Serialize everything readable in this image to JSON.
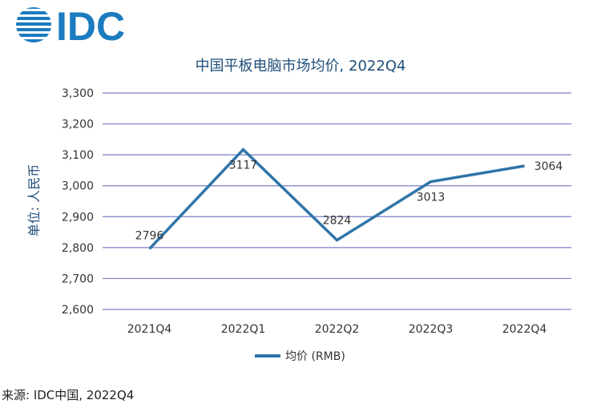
{
  "logo": {
    "text": "IDC",
    "color": "#1b7bbf"
  },
  "source_text": "来源: IDC中国, 2022Q4",
  "chart_data": {
    "type": "line",
    "title": "中国平板电脑市场均价, 2022Q4",
    "ylabel": "单位: 人民币",
    "xlabel": "",
    "categories": [
      "2021Q4",
      "2022Q1",
      "2022Q2",
      "2022Q3",
      "2022Q4"
    ],
    "series": [
      {
        "name": "均价 (RMB)",
        "values": [
          2796,
          3117,
          2824,
          3013,
          3064
        ],
        "color": "#2f75a8"
      }
    ],
    "data_labels": [
      "2796",
      "3117",
      "2824",
      "3013",
      "3064"
    ],
    "ylim": [
      2600,
      3300
    ],
    "yticks": [
      2600,
      2700,
      2800,
      2900,
      3000,
      3100,
      3200,
      3300
    ],
    "ytick_labels": [
      "2,600",
      "2,700",
      "2,800",
      "2,900",
      "3,000",
      "3,100",
      "3,200",
      "3,300"
    ],
    "grid": true,
    "legend_position": "bottom",
    "title_color": "#1f4e79",
    "axis_label_color": "#1f4e79",
    "grid_color": "#7a7fc9"
  }
}
